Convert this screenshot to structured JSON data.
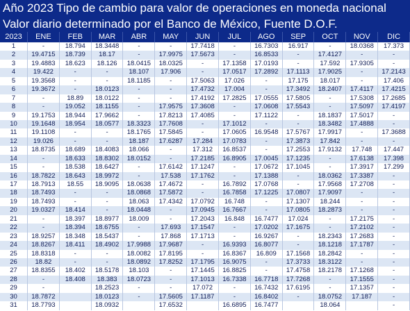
{
  "header": {
    "title": "Año 2023 Tipo de cambio para valor de operaciones en moneda nacional",
    "subtitle": "Valor diario determinado por el Banco de México, Fuente D.O.F."
  },
  "table": {
    "columns": [
      "2023",
      "ENE",
      "FEB",
      "MAR",
      "ABR",
      "MAY",
      "JUN",
      "JUL",
      "AGO",
      "SEP",
      "OCT",
      "NOV",
      "DIC"
    ],
    "rows": [
      [
        "1",
        "-",
        "18.794",
        "18.3448",
        "-",
        "-",
        "17.7418",
        "-",
        "16.7303",
        "16.917",
        "-",
        "18.0368",
        "17.373"
      ],
      [
        "2",
        "19.4715",
        "18.739",
        "18.17",
        "-",
        "17.9975",
        "17.5673",
        "-",
        "16.8533",
        "-",
        "17.4127",
        "-",
        "-"
      ],
      [
        "3",
        "19.4883",
        "18.623",
        "18.126",
        "18.0415",
        "18.0325",
        "-",
        "17.1358",
        "17.0193",
        "-",
        "17.592",
        "17.9305",
        "-"
      ],
      [
        "4",
        "19.422",
        "-",
        "-",
        "18.107",
        "17.906",
        "-",
        "17.0517",
        "17.2892",
        "17.1113",
        "17.9025",
        "-",
        "17.2143"
      ],
      [
        "5",
        "19.3568",
        "-",
        "-",
        "18.1185",
        "-",
        "17.5063",
        "17.026",
        "-",
        "17.175",
        "18.017",
        "-",
        "17.406"
      ],
      [
        "6",
        "19.3672",
        "-",
        "18.0123",
        "-",
        "-",
        "17.4732",
        "17.004",
        "-",
        "17.3492",
        "18.2407",
        "17.4117",
        "17.4215"
      ],
      [
        "7",
        "-",
        "18.89",
        "18.0122",
        "-",
        "-",
        "17.4192",
        "17.2825",
        "17.0555",
        "17.5805",
        "-",
        "17.5308",
        "17.2685"
      ],
      [
        "8",
        "-",
        "19.052",
        "18.1155",
        "-",
        "17.9575",
        "17.3608",
        "-",
        "17.0608",
        "17.5543",
        "-",
        "17.5097",
        "17.4197"
      ],
      [
        "9",
        "19.1753",
        "18.944",
        "17.9662",
        "-",
        "17.8213",
        "17.4085",
        "-",
        "17.1122",
        "-",
        "18.1837",
        "17.5017",
        "-"
      ],
      [
        "10",
        "19.1648",
        "18.954",
        "18.0577",
        "18.3323",
        "17.7608",
        "-",
        "17.1012",
        "-",
        "-",
        "18.3482",
        "17.4888",
        "-"
      ],
      [
        "11",
        "19.1108",
        "-",
        "-",
        "18.1765",
        "17.5845",
        "-",
        "17.0605",
        "16.9548",
        "17.5767",
        "17.9917",
        "-",
        "17.3688"
      ],
      [
        "12",
        "19.026",
        "-",
        "-",
        "18.187",
        "17.6287",
        "17.284",
        "17.0783",
        "-",
        "17.3873",
        "17.842",
        "-",
        "-"
      ],
      [
        "13",
        "18.8735",
        "18.689",
        "18.4083",
        "18.066",
        "-",
        "17.312",
        "16.8537",
        "-",
        "17.2553",
        "17.9132",
        "17.748",
        "17.447"
      ],
      [
        "14",
        "-",
        "18.633",
        "18.8302",
        "18.0152",
        "-",
        "17.2185",
        "16.8905",
        "17.0045",
        "17.1235",
        "-",
        "17.6138",
        "17.398"
      ],
      [
        "15",
        "-",
        "18.538",
        "18.6427",
        "-",
        "17.6142",
        "17.1247",
        "-",
        "17.0672",
        "17.1045",
        "-",
        "17.3917",
        "17.299"
      ],
      [
        "16",
        "18.7822",
        "18.643",
        "18.9972",
        "-",
        "17.538",
        "17.1762",
        "-",
        "17.1388",
        "-",
        "18.0362",
        "17.3387",
        "-"
      ],
      [
        "17",
        "18.7913",
        "18.55",
        "18.9095",
        "18.0638",
        "17.4672",
        "-",
        "16.7892",
        "17.0768",
        "-",
        "17.9568",
        "17.2708",
        "-"
      ],
      [
        "18",
        "18.7493",
        "-",
        "-",
        "18.0868",
        "17.5872",
        "-",
        "16.7858",
        "17.1225",
        "17.0807",
        "17.9097",
        "-",
        "-"
      ],
      [
        "19",
        "18.7493",
        "-",
        "-",
        "18.063",
        "17.4342",
        "17.0792",
        "16.748",
        "-",
        "17.1307",
        "18.244",
        "-",
        "-"
      ],
      [
        "20",
        "19.0327",
        "18.414",
        "-",
        "18.0448",
        "-",
        "17.0945",
        "16.7667",
        "-",
        "17.0805",
        "18.2873",
        "-",
        "-"
      ],
      [
        "21",
        "-",
        "18.397",
        "18.8977",
        "18.009",
        "-",
        "17.2043",
        "16.848",
        "16.7477",
        "17.024",
        "-",
        "17.2175",
        "-"
      ],
      [
        "22",
        "-",
        "18.394",
        "18.6755",
        "-",
        "17.693",
        "17.1547",
        "-",
        "17.0202",
        "17.1675",
        "-",
        "17.2102",
        "-"
      ],
      [
        "23",
        "18.9257",
        "18.348",
        "18.5437",
        "-",
        "17.868",
        "17.1713",
        "-",
        "16.9267",
        "-",
        "18.2343",
        "17.2683",
        "-"
      ],
      [
        "24",
        "18.8267",
        "18.411",
        "18.4902",
        "17.9988",
        "17.9687",
        "-",
        "16.9393",
        "16.8077",
        "-",
        "18.1218",
        "17.1787",
        "-"
      ],
      [
        "25",
        "18.8318",
        "-",
        "-",
        "18.0082",
        "17.8195",
        "-",
        "16.8367",
        "16.809",
        "17.1568",
        "18.2842",
        "-",
        "-"
      ],
      [
        "26",
        "18.82",
        "-",
        "-",
        "18.0892",
        "17.8252",
        "17.1795",
        "16.9075",
        "-",
        "17.3733",
        "18.3122",
        "-",
        "-"
      ],
      [
        "27",
        "18.8355",
        "18.402",
        "18.5178",
        "18.103",
        "-",
        "17.1445",
        "16.8825",
        "-",
        "17.4758",
        "18.2178",
        "17.1268",
        "-"
      ],
      [
        "28",
        "-",
        "18.408",
        "18.383",
        "18.0723",
        "-",
        "17.1013",
        "16.7338",
        "16.7718",
        "17.7268",
        "-",
        "17.1555",
        "-"
      ],
      [
        "29",
        "-",
        null,
        "18.2523",
        "-",
        "-",
        "17.072",
        "-",
        "16.7432",
        "17.6195",
        "-",
        "17.1357",
        "-"
      ],
      [
        "30",
        "18.7872",
        null,
        "18.0123",
        "-",
        "17.5605",
        "17.1187",
        "-",
        "16.8402",
        "-",
        "18.0752",
        "17.187",
        "-"
      ],
      [
        "31",
        "18.7793",
        null,
        "18.0932",
        null,
        "17.6532",
        null,
        "16.6895",
        "16.7477",
        null,
        "18.064",
        null,
        "-"
      ]
    ]
  }
}
